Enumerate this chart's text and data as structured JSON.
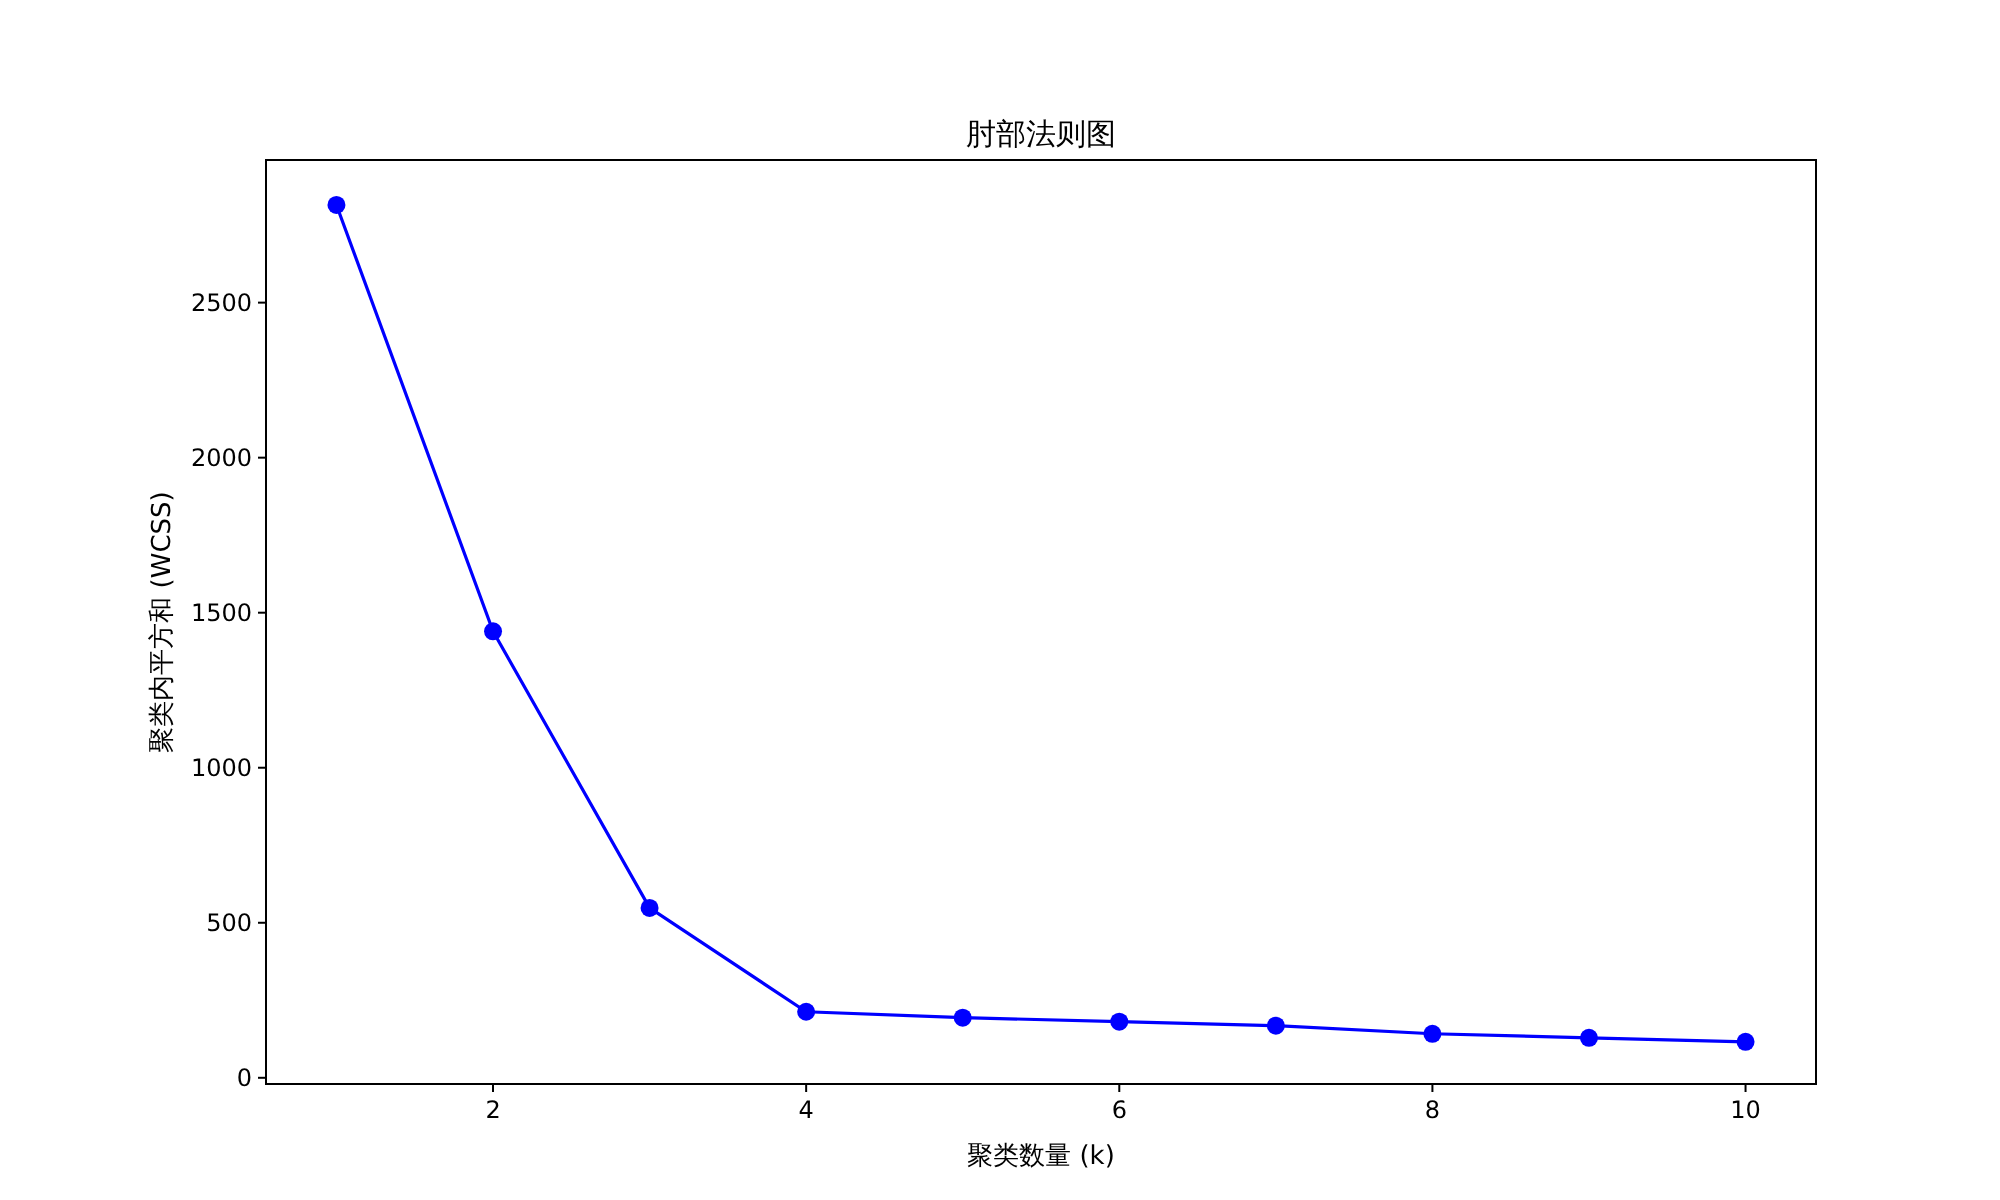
{
  "chart_data": {
    "type": "line",
    "title": "肘部法则图",
    "xlabel": "聚类数量 (k)",
    "ylabel": "聚类内平方和 (WCSS)",
    "x": [
      1,
      2,
      3,
      4,
      5,
      6,
      7,
      8,
      9,
      10
    ],
    "series": [
      {
        "color": "#0000ff",
        "values": [
          2815,
          1440,
          548,
          213,
          194,
          181,
          168,
          142,
          129,
          116
        ]
      }
    ],
    "marker": "circle",
    "line_style": "solid",
    "xlim": [
      0.55,
      10.45
    ],
    "ylim": [
      -20,
      2960
    ],
    "xticks": [
      2,
      4,
      6,
      8,
      10
    ],
    "yticks": [
      0,
      500,
      1000,
      1500,
      2000,
      2500
    ]
  }
}
